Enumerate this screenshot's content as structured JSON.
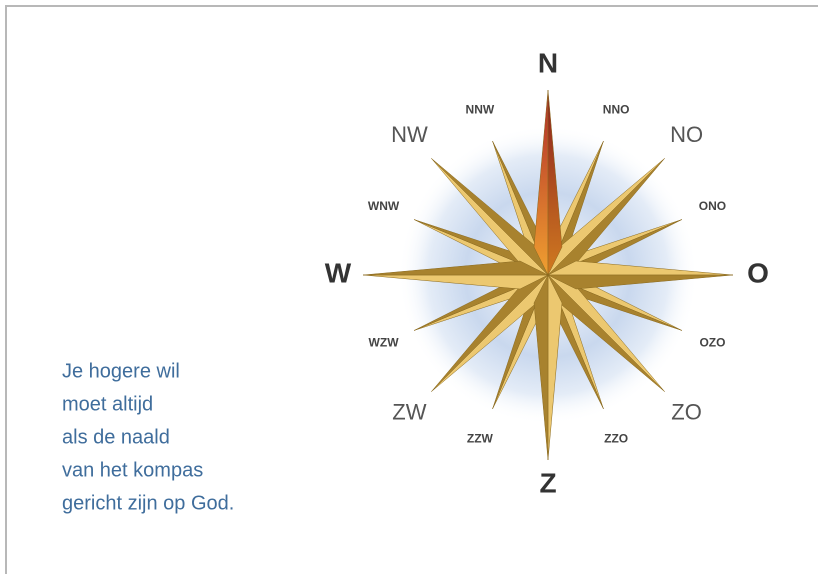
{
  "compass": {
    "labels": [
      "N",
      "NNO",
      "NO",
      "ONO",
      "O",
      "OZO",
      "ZO",
      "ZZO",
      "Z",
      "ZZW",
      "ZW",
      "WZW",
      "W",
      "WNW",
      "NW",
      "NNW"
    ]
  },
  "text": {
    "lines": [
      "Je hogere wil",
      "moet altijd",
      "als de naald",
      "van het kompas",
      "gericht zijn op God."
    ]
  }
}
